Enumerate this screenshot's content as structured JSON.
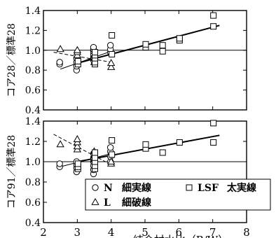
{
  "chart_data": [
    {
      "type": "scatter",
      "ylabel": "コア28／標準28",
      "ylim": [
        0.4,
        1.4
      ],
      "xlim": [
        2,
        8
      ],
      "yticks": [
        "0.4",
        "0.6",
        "0.8",
        "1.0",
        "1.2",
        "1.4"
      ],
      "reference_line": 1.0,
      "series": [
        {
          "name": "N",
          "marker": "circle",
          "points": [
            [
              2.5,
              0.86
            ],
            [
              2.5,
              0.88
            ],
            [
              3.0,
              0.8
            ],
            [
              3.0,
              0.84
            ],
            [
              3.0,
              0.88
            ],
            [
              3.0,
              0.92
            ],
            [
              3.5,
              0.9
            ],
            [
              3.5,
              0.93
            ],
            [
              3.5,
              0.96
            ],
            [
              3.5,
              0.99
            ],
            [
              3.5,
              1.01
            ],
            [
              3.5,
              1.03
            ],
            [
              4.0,
              0.98
            ],
            [
              4.0,
              1.01
            ],
            [
              4.0,
              1.05
            ]
          ],
          "fit": [
            [
              2.5,
              0.81
            ],
            [
              4.0,
              0.99
            ]
          ],
          "fit_style": "thin-solid"
        },
        {
          "name": "L",
          "marker": "triangle",
          "points": [
            [
              2.5,
              1.01
            ],
            [
              3.0,
              0.95
            ],
            [
              3.0,
              0.98
            ],
            [
              3.0,
              1.0
            ],
            [
              3.5,
              0.88
            ],
            [
              3.5,
              0.92
            ],
            [
              3.5,
              0.95
            ],
            [
              4.0,
              0.83
            ],
            [
              4.0,
              0.87
            ]
          ],
          "fit": [
            [
              2.3,
              0.98
            ],
            [
              4.0,
              0.88
            ]
          ],
          "fit_style": "thin-dashed"
        },
        {
          "name": "LSF",
          "marker": "square",
          "points": [
            [
              3.0,
              0.86
            ],
            [
              3.0,
              0.89
            ],
            [
              3.5,
              0.86
            ],
            [
              3.5,
              0.88
            ],
            [
              3.5,
              0.92
            ],
            [
              3.5,
              0.95
            ],
            [
              3.5,
              0.98
            ],
            [
              4.0,
              0.96
            ],
            [
              4.0,
              1.15
            ],
            [
              5.0,
              1.03
            ],
            [
              5.0,
              1.06
            ],
            [
              5.5,
              0.99
            ],
            [
              5.5,
              1.05
            ],
            [
              6.0,
              1.1
            ],
            [
              6.0,
              1.12
            ],
            [
              7.0,
              1.24
            ],
            [
              7.0,
              1.35
            ]
          ],
          "fit": [
            [
              3.0,
              0.87
            ],
            [
              7.2,
              1.25
            ]
          ],
          "fit_style": "thick-solid"
        }
      ]
    },
    {
      "type": "scatter",
      "ylabel": "コア91／標準28",
      "xlabel": "結合材水比（B/W）",
      "ylim": [
        0.4,
        1.4
      ],
      "xlim": [
        2,
        8
      ],
      "yticks": [
        "0.4",
        "0.6",
        "0.8",
        "1.0",
        "1.2",
        "1.4"
      ],
      "xticks": [
        "2",
        "3",
        "4",
        "5",
        "6",
        "7",
        "8"
      ],
      "reference_line": 1.0,
      "series": [
        {
          "name": "N",
          "marker": "circle",
          "points": [
            [
              2.5,
              0.95
            ],
            [
              2.5,
              0.98
            ],
            [
              3.0,
              0.9
            ],
            [
              3.0,
              0.94
            ],
            [
              3.0,
              0.97
            ],
            [
              3.0,
              1.0
            ],
            [
              3.5,
              0.88
            ],
            [
              3.5,
              0.92
            ],
            [
              3.5,
              0.96
            ],
            [
              3.5,
              1.0
            ],
            [
              3.5,
              1.04
            ],
            [
              3.5,
              1.08
            ],
            [
              4.0,
              1.0
            ],
            [
              4.0,
              1.05
            ],
            [
              4.0,
              1.1
            ],
            [
              4.0,
              1.14
            ]
          ],
          "fit": [
            [
              2.5,
              0.95
            ],
            [
              4.0,
              1.08
            ]
          ],
          "fit_style": "thin-solid"
        },
        {
          "name": "L",
          "marker": "triangle",
          "points": [
            [
              2.5,
              1.17
            ],
            [
              3.0,
              1.12
            ],
            [
              3.0,
              1.15
            ],
            [
              3.0,
              1.19
            ],
            [
              3.0,
              1.22
            ],
            [
              3.5,
              1.02
            ],
            [
              3.5,
              1.06
            ],
            [
              3.5,
              1.1
            ],
            [
              4.0,
              0.98
            ],
            [
              4.0,
              1.0
            ]
          ],
          "fit": [
            [
              2.3,
              1.27
            ],
            [
              4.0,
              0.97
            ]
          ],
          "fit_style": "thin-dashed"
        },
        {
          "name": "LSF",
          "marker": "square",
          "points": [
            [
              3.0,
              0.93
            ],
            [
              3.0,
              0.95
            ],
            [
              3.0,
              0.98
            ],
            [
              3.5,
              0.93
            ],
            [
              3.5,
              0.96
            ],
            [
              3.5,
              1.0
            ],
            [
              3.5,
              1.04
            ],
            [
              3.5,
              1.09
            ],
            [
              4.0,
              1.07
            ],
            [
              4.0,
              1.21
            ],
            [
              5.0,
              1.13
            ],
            [
              5.0,
              1.17
            ],
            [
              5.5,
              1.09
            ],
            [
              6.0,
              1.19
            ],
            [
              7.0,
              1.19
            ],
            [
              7.0,
              1.38
            ]
          ],
          "fit": [
            [
              3.0,
              1.0
            ],
            [
              7.2,
              1.26
            ]
          ],
          "fit_style": "thick-solid"
        }
      ]
    }
  ],
  "legend": {
    "placement": "bottom-right of lower panel",
    "entries": [
      {
        "marker": "circle",
        "code": "N",
        "line": "細実線"
      },
      {
        "marker": "triangle",
        "code": "L",
        "line": "細破線"
      },
      {
        "marker": "square",
        "code": "LSF",
        "line": "太実線"
      }
    ]
  }
}
